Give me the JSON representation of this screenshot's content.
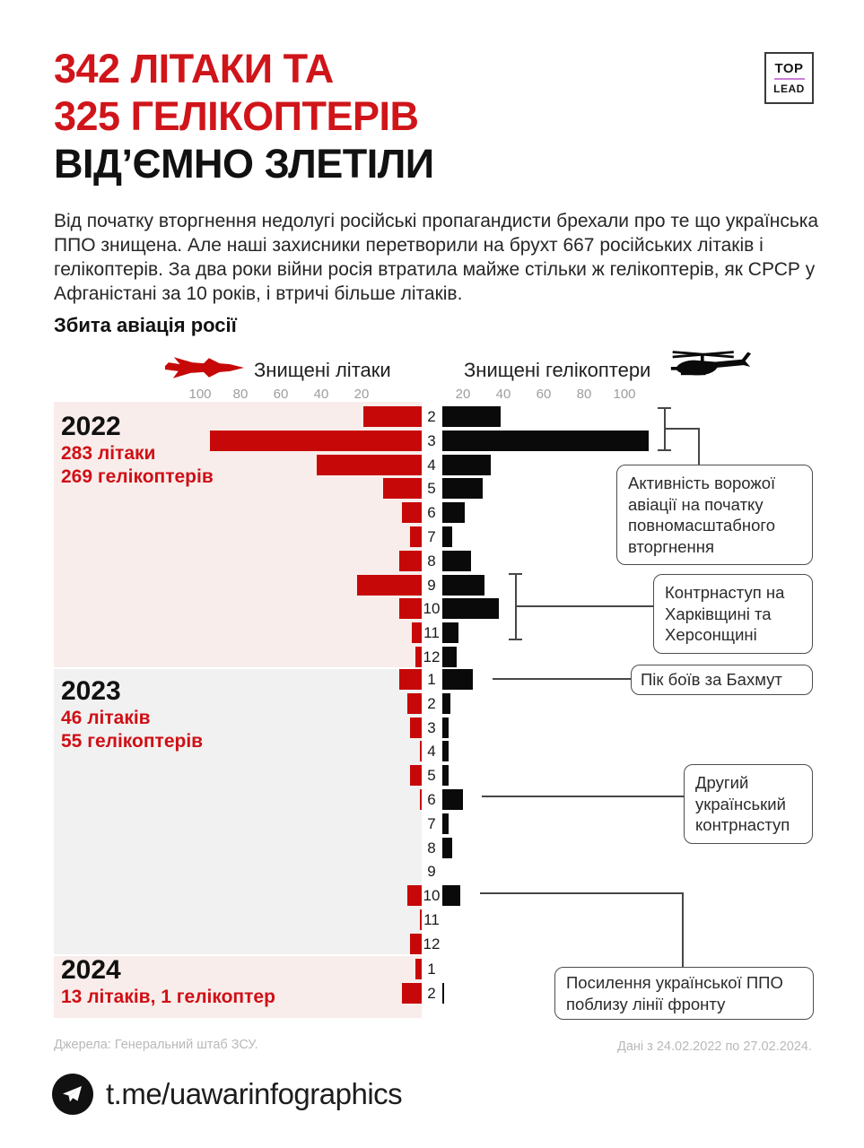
{
  "title": {
    "line1": "342 ЛІТАКИ ТА",
    "line2": "325 ГЕЛІКОПТЕРІВ",
    "line3": "ВІД’ЄМНО ЗЛЕТІЛИ"
  },
  "logo": {
    "top": "TOP",
    "lead": "LEAD"
  },
  "intro": "Від початку вторгнення недолугі російські пропагандисти брехали про те що українська ППО знищена. Але наші захисники перетворили на брухт 667 російських літаків і гелікоптерів. За два роки війни росія втратила майже стільки ж гелікоптерів, як СРСР у Афганістані за 10 років, і втричі більше літаків.",
  "chart_heading": "Збита авіація росії",
  "legend": {
    "planes": "Знищені літаки",
    "helicopters": "Знищені гелікоптери"
  },
  "chart_data": {
    "type": "bar",
    "orientation": "horizontal-diverging",
    "left_series": "Знищені літаки",
    "right_series": "Знищені гелікоптери",
    "axis_ticks_left": [
      100,
      80,
      60,
      40,
      20
    ],
    "axis_ticks_right": [
      20,
      40,
      60,
      80,
      100
    ],
    "groups": [
      {
        "year": "2022",
        "summary": [
          "283 літаки",
          "269 гелікоптерів"
        ],
        "panel": "pink",
        "months": [
          2,
          3,
          4,
          5,
          6,
          7,
          8,
          9,
          10,
          11,
          12
        ],
        "planes": [
          29,
          105,
          52,
          19,
          10,
          6,
          11,
          32,
          11,
          5,
          3
        ],
        "helicopters": [
          29,
          102,
          24,
          20,
          11,
          5,
          14,
          21,
          28,
          8,
          7
        ]
      },
      {
        "year": "2023",
        "summary": [
          "46 літаків",
          "55 гелікоптерів"
        ],
        "panel": "gray",
        "months": [
          1,
          2,
          3,
          4,
          5,
          6,
          7,
          8,
          9,
          10,
          11,
          12
        ],
        "planes": [
          11,
          7,
          6,
          1,
          6,
          1,
          0,
          0,
          0,
          7,
          1,
          6
        ],
        "helicopters": [
          15,
          4,
          3,
          3,
          3,
          10,
          3,
          5,
          0,
          9,
          0,
          0
        ]
      },
      {
        "year": "2024",
        "summary": [
          "13 літаків, 1 гелікоптер"
        ],
        "panel": "pink",
        "months": [
          1,
          2
        ],
        "planes": [
          3,
          10
        ],
        "helicopters": [
          0,
          1
        ]
      }
    ]
  },
  "annotations": [
    {
      "text": "Активність ворожої авіації на початку повномасштабного вторгнення"
    },
    {
      "text": "Контрнаступ на Харківщині та Херсонщині"
    },
    {
      "text": "Пік боїв за Бахмут"
    },
    {
      "text": "Другий український контрнаступ"
    },
    {
      "text": "Посилення української ППО поблизу лінії фронту"
    }
  ],
  "footer": {
    "source": "Джерела: Генеральний штаб ЗСУ.",
    "daterange": "Дані з 24.02.2022 по 27.02.2024.",
    "telegram": "t.me/uawarinfographics"
  },
  "colors": {
    "bar_red": "#c70808",
    "bar_black": "#0a0a0a",
    "title_red": "#d0151a",
    "label_red": "#cf1016",
    "panel_pink": "#f8edeb",
    "panel_gray": "#f1f1f1",
    "tick_gray": "#9e9e9e",
    "footer_gray": "#b9b9b9",
    "logo_divider": "#c77fd4"
  }
}
